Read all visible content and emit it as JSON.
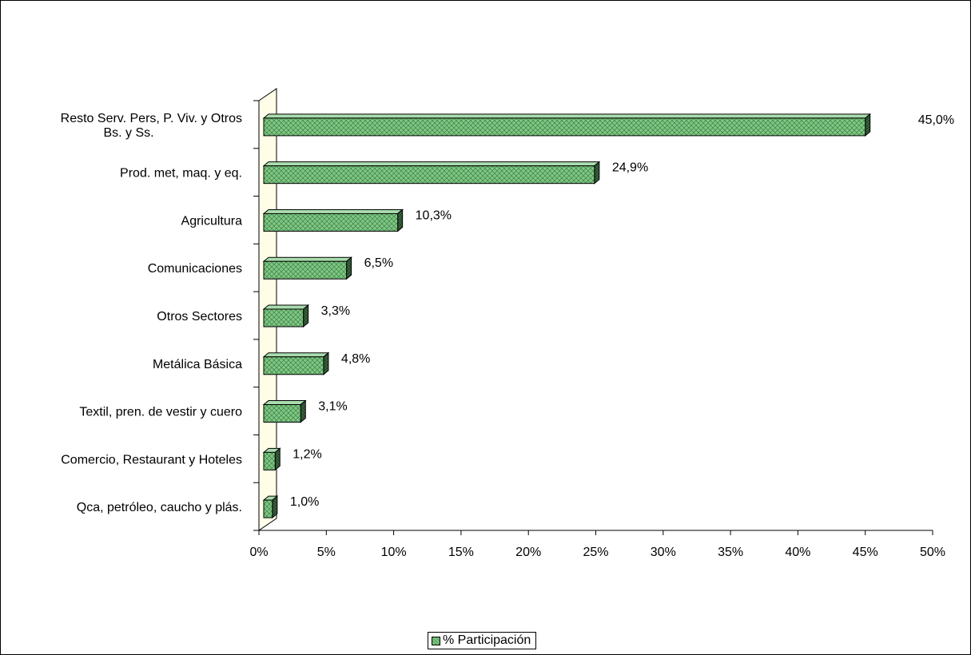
{
  "chart_data": {
    "type": "bar",
    "orientation": "horizontal",
    "categories": [
      [
        "Resto Serv. Pers, P. Viv. y Otros",
        "Bs. y Ss."
      ],
      [
        "Prod. met, maq. y eq."
      ],
      [
        "Agricultura"
      ],
      [
        "Comunicaciones"
      ],
      [
        "Otros Sectores"
      ],
      [
        "Metálica Básica"
      ],
      [
        "Textil, pren. de vestir y cuero"
      ],
      [
        "Comercio, Restaurant y Hoteles"
      ],
      [
        "Qca, petróleo, caucho y plás."
      ]
    ],
    "series": [
      {
        "name": "% Participación",
        "values": [
          45.0,
          24.9,
          10.3,
          6.5,
          3.3,
          4.8,
          3.1,
          1.2,
          1.0
        ],
        "labels": [
          "45,0%",
          "24,9%",
          "10,3%",
          "6,5%",
          "3,3%",
          "4,8%",
          "3,1%",
          "1,2%",
          "1,0%"
        ],
        "color": "#7fc884"
      }
    ],
    "xlim": [
      0,
      50
    ],
    "xticks": [
      0,
      5,
      10,
      15,
      20,
      25,
      30,
      35,
      40,
      45,
      50
    ],
    "xtick_labels": [
      "0%",
      "5%",
      "10%",
      "15%",
      "20%",
      "25%",
      "30%",
      "35%",
      "40%",
      "45%",
      "50%"
    ],
    "grid": false,
    "legend_position": "bottom",
    "wall_color": "#fffde7"
  },
  "legend": {
    "label": "% Participación"
  }
}
